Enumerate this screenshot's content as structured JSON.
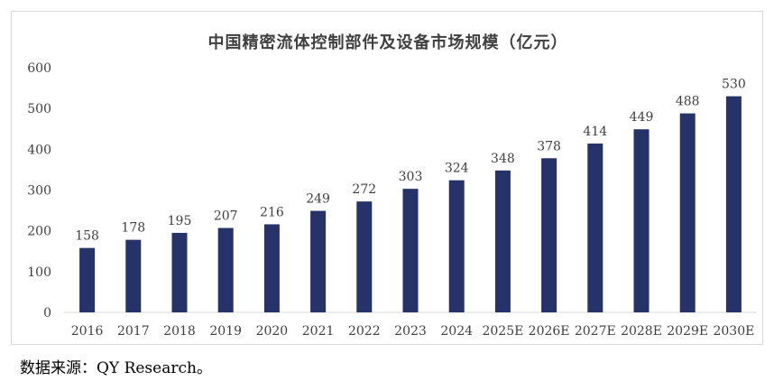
{
  "chart_data": {
    "type": "bar",
    "title": "中国精密流体控制部件及设备市场规模（亿元）",
    "categories": [
      "2016",
      "2017",
      "2018",
      "2019",
      "2020",
      "2021",
      "2022",
      "2023",
      "2024",
      "2025E",
      "2026E",
      "2027E",
      "2028E",
      "2029E",
      "2030E"
    ],
    "series": [
      {
        "values": [
          158,
          178,
          195,
          207,
          216,
          249,
          272,
          303,
          324,
          348,
          378,
          414,
          449,
          488,
          530
        ]
      }
    ],
    "ylim": [
      0,
      600
    ],
    "yticks": [
      0,
      100,
      200,
      300,
      400,
      500,
      600
    ],
    "xlabel": "",
    "ylabel": "",
    "grid": false,
    "legend": "none",
    "bar_color": "#253369",
    "data_labels": true
  },
  "footer": {
    "source": "数据来源：QY Research。"
  }
}
